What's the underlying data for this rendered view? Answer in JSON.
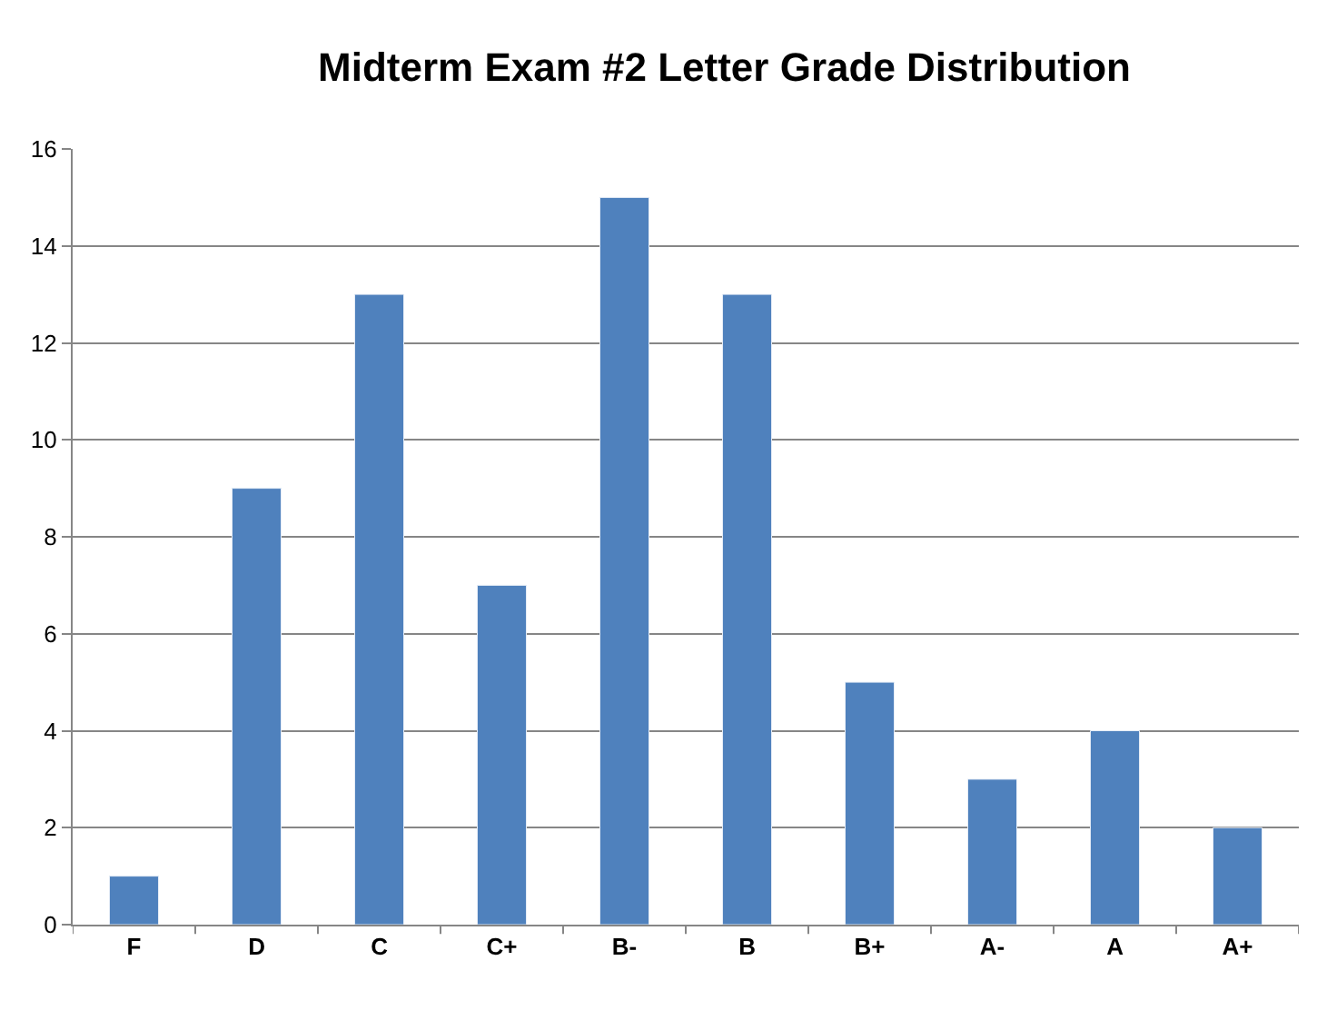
{
  "chart_data": {
    "type": "bar",
    "title": "Midterm Exam #2 Letter Grade Distribution",
    "categories": [
      "F",
      "D",
      "C",
      "C+",
      "B-",
      "B",
      "B+",
      "A-",
      "A",
      "A+"
    ],
    "values": [
      1,
      9,
      13,
      7,
      15,
      13,
      5,
      3,
      4,
      2
    ],
    "color": "#4f81bd",
    "ylim": [
      0,
      16
    ],
    "yticks": [
      0,
      2,
      4,
      6,
      8,
      10,
      12,
      14,
      16
    ],
    "grid": "y"
  }
}
